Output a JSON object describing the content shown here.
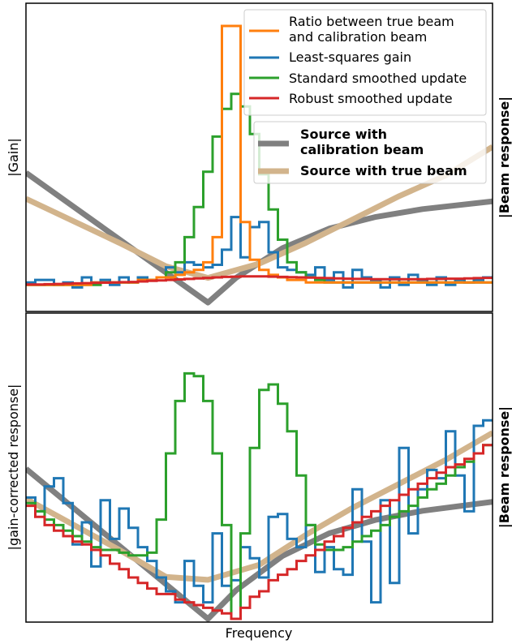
{
  "chart_data": [
    {
      "panel": "top",
      "type": "line",
      "drawstyle": "steps-mid",
      "ylabel": "|Gain|",
      "ylabel_right": "|Beam response|",
      "xlabel": "",
      "xticks": "none",
      "yticks": "none",
      "legend_upper": {
        "placement": "top-right",
        "entries": [
          "Ratio between true beam\nand calibration beam",
          "Least-squares gain",
          "Standard smoothed update",
          "Robust smoothed update"
        ]
      },
      "legend_lower": {
        "placement": "center-right",
        "bold": true,
        "entries": [
          "Source with\ncalibration beam",
          "Source with true beam"
        ]
      },
      "colors": {
        "ratio": "#ff7f0e",
        "least_squares": "#1f77b4",
        "standard": "#2ca02c",
        "robust": "#d62728",
        "cal_beam": "#808080",
        "true_beam": "#d2b48c"
      },
      "x_bins": 50,
      "ylim_left": [
        0,
        1
      ],
      "ylim_right": [
        0,
        1
      ],
      "series": [
        {
          "name": "Ratio between true beam and calibration beam",
          "color": "#ff7f0e",
          "values": [
            0.07,
            0.07,
            0.07,
            0.07,
            0.07,
            0.07,
            0.07,
            0.08,
            0.08,
            0.08,
            0.08,
            0.08,
            0.09,
            0.09,
            0.1,
            0.1,
            0.11,
            0.12,
            0.13,
            0.16,
            0.26,
            1.1,
            1.1,
            0.32,
            0.17,
            0.13,
            0.11,
            0.1,
            0.09,
            0.09,
            0.08,
            0.08,
            0.08,
            0.08,
            0.08,
            0.08,
            0.08,
            0.08,
            0.08,
            0.08,
            0.08,
            0.08,
            0.08,
            0.08,
            0.08,
            0.08,
            0.08,
            0.08,
            0.08,
            0.08
          ]
        },
        {
          "name": "Least-squares gain",
          "color": "#1f77b4",
          "values": [
            0.08,
            0.09,
            0.09,
            0.07,
            0.08,
            0.06,
            0.1,
            0.08,
            0.09,
            0.07,
            0.1,
            0.08,
            0.1,
            0.09,
            0.1,
            0.14,
            0.12,
            0.16,
            0.15,
            0.14,
            0.15,
            0.21,
            0.34,
            0.18,
            0.3,
            0.32,
            0.2,
            0.14,
            0.13,
            0.12,
            0.11,
            0.14,
            0.09,
            0.12,
            0.06,
            0.13,
            0.1,
            0.09,
            0.06,
            0.1,
            0.07,
            0.11,
            0.09,
            0.07,
            0.1,
            0.07,
            0.09,
            0.08,
            0.09,
            0.1
          ]
        },
        {
          "name": "Standard smoothed update",
          "color": "#2ca02c",
          "values": [
            0.07,
            0.07,
            0.07,
            0.07,
            0.07,
            0.07,
            0.07,
            0.07,
            0.08,
            0.08,
            0.08,
            0.08,
            0.09,
            0.09,
            0.1,
            0.12,
            0.16,
            0.26,
            0.38,
            0.52,
            0.66,
            0.77,
            0.83,
            0.78,
            0.67,
            0.51,
            0.37,
            0.25,
            0.16,
            0.12,
            0.1,
            0.09,
            0.08,
            0.08,
            0.08,
            0.08,
            0.08,
            0.08,
            0.08,
            0.08,
            0.08,
            0.08,
            0.08,
            0.08,
            0.08,
            0.08,
            0.08,
            0.08,
            0.08,
            0.08
          ]
        },
        {
          "name": "Robust smoothed update",
          "color": "#d62728",
          "values": [
            0.072,
            0.072,
            0.073,
            0.074,
            0.075,
            0.076,
            0.077,
            0.078,
            0.079,
            0.08,
            0.081,
            0.082,
            0.084,
            0.086,
            0.088,
            0.09,
            0.092,
            0.094,
            0.096,
            0.098,
            0.1,
            0.102,
            0.103,
            0.104,
            0.104,
            0.104,
            0.103,
            0.102,
            0.101,
            0.1,
            0.099,
            0.098,
            0.097,
            0.096,
            0.095,
            0.094,
            0.094,
            0.093,
            0.093,
            0.093,
            0.093,
            0.093,
            0.093,
            0.094,
            0.094,
            0.095,
            0.095,
            0.096,
            0.097,
            0.098
          ]
        },
        {
          "name": "Source with calibration beam",
          "color": "#808080",
          "axis": "right",
          "x": [
            0,
            0.39,
            0.45,
            0.55,
            0.65,
            0.75,
            0.85,
            1.0
          ],
          "values": [
            0.5,
            0.0,
            0.095,
            0.21,
            0.285,
            0.33,
            0.36,
            0.39
          ]
        },
        {
          "name": "Source with true beam",
          "color": "#d2b48c",
          "axis": "right",
          "x": [
            0,
            0.2,
            0.3,
            0.39,
            0.5,
            0.6,
            0.7,
            0.8,
            0.9,
            1.0
          ],
          "values": [
            0.4,
            0.23,
            0.14,
            0.095,
            0.15,
            0.23,
            0.32,
            0.41,
            0.49,
            0.6
          ]
        }
      ]
    },
    {
      "panel": "bottom",
      "type": "line",
      "drawstyle": "steps-mid",
      "ylabel": "|gain-corrected response|",
      "ylabel_right": "|Beam response|",
      "xlabel": "Frequency",
      "xticks": "none",
      "yticks": "none",
      "x_bins": 50,
      "ylim_left": [
        0,
        1
      ],
      "ylim_right": [
        0,
        1
      ],
      "series": [
        {
          "name": "Least-squares gain",
          "color": "#1f77b4",
          "values": [
            0.44,
            0.39,
            0.48,
            0.51,
            0.42,
            0.27,
            0.35,
            0.19,
            0.43,
            0.29,
            0.4,
            0.33,
            0.26,
            0.21,
            0.15,
            0.1,
            0.06,
            0.21,
            0.12,
            0.06,
            0.31,
            0.12,
            0.14,
            0.26,
            0.22,
            0.15,
            0.37,
            0.38,
            0.29,
            0.26,
            0.34,
            0.17,
            0.26,
            0.18,
            0.16,
            0.47,
            0.28,
            0.06,
            0.43,
            0.13,
            0.62,
            0.31,
            0.47,
            0.54,
            0.51,
            0.68,
            0.52,
            0.39,
            0.7,
            0.72
          ]
        },
        {
          "name": "Standard smoothed update",
          "color": "#2ca02c",
          "values": [
            0.42,
            0.39,
            0.36,
            0.34,
            0.32,
            0.3,
            0.28,
            0.26,
            0.25,
            0.25,
            0.24,
            0.23,
            0.23,
            0.24,
            0.36,
            0.6,
            0.79,
            0.89,
            0.88,
            0.79,
            0.6,
            0.34,
            0.0,
            0.31,
            0.62,
            0.83,
            0.85,
            0.78,
            0.68,
            0.52,
            0.34,
            0.27,
            0.25,
            0.25,
            0.26,
            0.28,
            0.3,
            0.32,
            0.34,
            0.37,
            0.39,
            0.41,
            0.44,
            0.47,
            0.49,
            0.52,
            0.55,
            0.57,
            0.6,
            0.63
          ]
        },
        {
          "name": "Robust smoothed update",
          "color": "#d62728",
          "values": [
            0.41,
            0.37,
            0.34,
            0.32,
            0.3,
            0.28,
            0.27,
            0.25,
            0.23,
            0.2,
            0.18,
            0.15,
            0.13,
            0.11,
            0.09,
            0.09,
            0.07,
            0.06,
            0.05,
            0.04,
            0.03,
            0.02,
            0.0,
            0.04,
            0.08,
            0.1,
            0.14,
            0.16,
            0.18,
            0.21,
            0.23,
            0.25,
            0.28,
            0.3,
            0.33,
            0.35,
            0.37,
            0.39,
            0.41,
            0.43,
            0.45,
            0.47,
            0.49,
            0.51,
            0.53,
            0.55,
            0.56,
            0.58,
            0.6,
            0.63
          ]
        },
        {
          "name": "Source with calibration beam",
          "color": "#808080",
          "axis": "right",
          "x": [
            0,
            0.39,
            0.45,
            0.55,
            0.65,
            0.75,
            0.85,
            1.0
          ],
          "values": [
            0.5,
            0.0,
            0.095,
            0.21,
            0.285,
            0.33,
            0.36,
            0.39
          ]
        },
        {
          "name": "Source with true beam",
          "color": "#d2b48c",
          "axis": "right",
          "x": [
            0,
            0.2,
            0.3,
            0.39,
            0.5,
            0.6,
            0.7,
            0.8,
            0.9,
            1.0
          ],
          "values": [
            0.4,
            0.23,
            0.14,
            0.13,
            0.18,
            0.28,
            0.37,
            0.45,
            0.53,
            0.62
          ]
        }
      ]
    }
  ]
}
